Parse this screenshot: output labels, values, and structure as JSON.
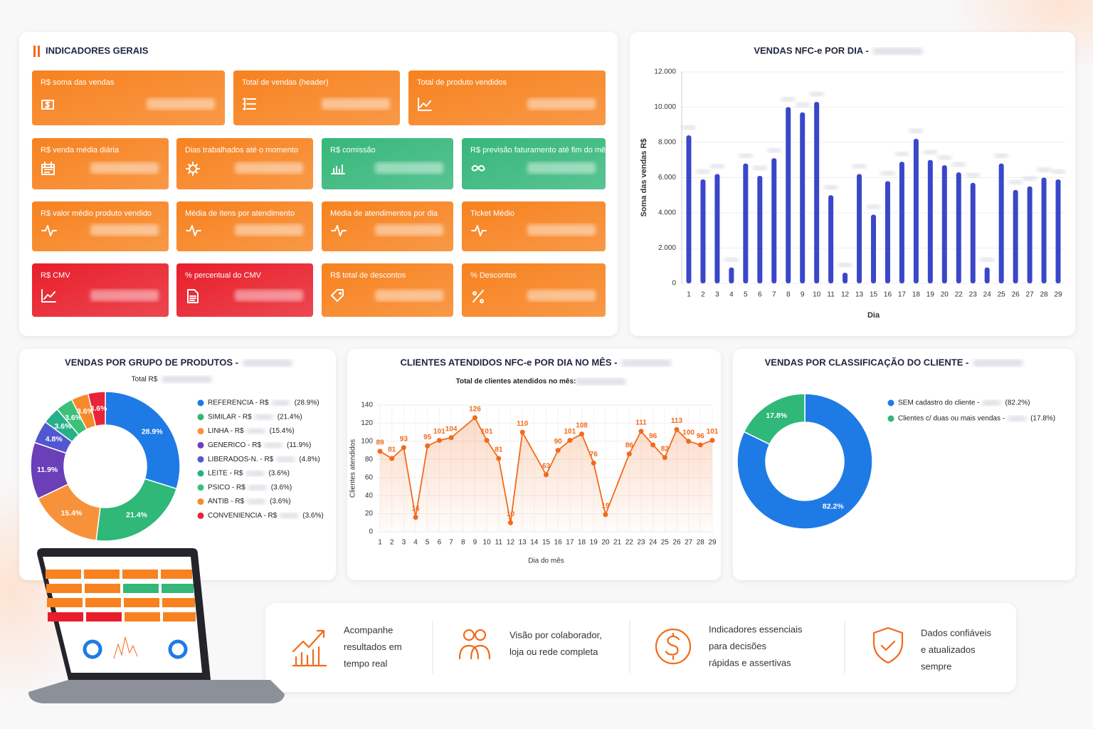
{
  "indicators": {
    "title": "INDICADORES GERAIS",
    "cards": [
      {
        "label": "R$ soma das vendas",
        "color": "#f7821f"
      },
      {
        "label": "Total de vendas (header)",
        "color": "#f7821f"
      },
      {
        "label": "Total de produto vendidos",
        "color": "#f7821f"
      },
      {
        "label": "R$ venda média diária",
        "color": "#f7821f"
      },
      {
        "label": "Dias trabalhados até o momento",
        "color": "#f7821f"
      },
      {
        "label": "R$ comissão",
        "color": "#35b77a"
      },
      {
        "label": "R$ previsão faturamento até fim do mês",
        "color": "#35b77a"
      },
      {
        "label": "R$ valor médio produto vendido",
        "color": "#f7821f"
      },
      {
        "label": "Média de itens por atendimento",
        "color": "#f7821f"
      },
      {
        "label": "Média de atendimentos por dia",
        "color": "#f7821f"
      },
      {
        "label": "Ticket Médio",
        "color": "#f7821f"
      },
      {
        "label": "R$ CMV",
        "color": "#e81f2b"
      },
      {
        "label": "% percentual do CMV",
        "color": "#e81f2b"
      },
      {
        "label": "R$ total de descontos",
        "color": "#f7821f"
      },
      {
        "label": "% Descontos",
        "color": "#f7821f"
      }
    ]
  },
  "chart_data": [
    {
      "type": "bar",
      "title": "VENDAS NFC-e POR DIA -",
      "categories": [
        "1",
        "2",
        "3",
        "4",
        "5",
        "6",
        "7",
        "8",
        "9",
        "10",
        "11",
        "12",
        "13",
        "15",
        "16",
        "17",
        "18",
        "19",
        "20",
        "22",
        "23",
        "24",
        "25",
        "26",
        "27",
        "28",
        "29"
      ],
      "values": [
        8400,
        5900,
        6200,
        900,
        6800,
        6100,
        7100,
        10000,
        9700,
        10300,
        5000,
        600,
        6200,
        3900,
        5800,
        6900,
        8200,
        7000,
        6700,
        6300,
        5700,
        900,
        6800,
        5300,
        5500,
        6000,
        5900
      ],
      "color": "#3a47c9",
      "ylim": [
        0,
        12000
      ],
      "yticks": [
        0,
        {
          "value": 2000,
          "label": "2.000"
        },
        {
          "value": 4000,
          "label": "4.000"
        },
        {
          "value": 6000,
          "label": "6.000"
        },
        {
          "value": 8000,
          "label": "8.000"
        },
        {
          "value": 10000,
          "label": "10.000"
        },
        {
          "value": 12000,
          "label": "12.000"
        }
      ],
      "ylabel": "Soma das vendas R$",
      "xlabel": "Dia",
      "grid": true
    },
    {
      "type": "donut",
      "title": "VENDAS POR GRUPO DE PRODUTOS -",
      "subtitle": "Total R$",
      "categories": [
        "REFERENCIA - R$",
        "SIMILAR - R$",
        "LINHA - R$",
        "GENERICO - R$",
        "LIBERADOS-N. - R$",
        "LEITE - R$",
        "PSICO - R$",
        "ANTIB - R$",
        "CONVENIENCIA - R$"
      ],
      "values": [
        28.9,
        21.4,
        15.4,
        11.9,
        4.8,
        3.6,
        3.6,
        3.6,
        3.6
      ],
      "value_labels": [
        "28.9%",
        "21.4%",
        "15.4%",
        "11.9%",
        "4.8%",
        "3.6%",
        "3.6%",
        "3.6%",
        "3.6%"
      ],
      "legend_labels": [
        "(28.9%)",
        "(21.4%)",
        "(15.4%)",
        "(11.9%)",
        "(4.8%)",
        "(3.6%)",
        "(3.6%)",
        "(3.6%)",
        "(3.6%)"
      ],
      "colors": [
        "#1e7be6",
        "#2fb877",
        "#f7923a",
        "#6a3fb8",
        "#5057d0",
        "#26b08a",
        "#3cc07a",
        "#f68a2b",
        "#e8243a"
      ]
    },
    {
      "type": "line",
      "title": "CLIENTES ATENDIDOS NFC-e POR DIA NO MÊS -",
      "subtitle": "Total de clientes atendidos no mês:",
      "x": [
        1,
        2,
        3,
        4,
        5,
        6,
        7,
        9,
        10,
        11,
        12,
        13,
        15,
        16,
        17,
        18,
        19,
        20,
        22,
        23,
        24,
        25,
        26,
        27,
        28,
        29
      ],
      "values": [
        89,
        81,
        93,
        16,
        95,
        101,
        104,
        126,
        101,
        81,
        10,
        110,
        63,
        90,
        101,
        108,
        76,
        19,
        86,
        111,
        96,
        82,
        113,
        100,
        96,
        101
      ],
      "color": "#f26a1b",
      "xlim": [
        1,
        29
      ],
      "xticks": [
        1,
        2,
        3,
        4,
        5,
        6,
        7,
        8,
        9,
        10,
        11,
        12,
        13,
        14,
        15,
        16,
        17,
        18,
        19,
        20,
        21,
        22,
        23,
        24,
        25,
        26,
        27,
        28,
        29
      ],
      "ylim": [
        0,
        140
      ],
      "yticks": [
        0,
        20,
        40,
        60,
        80,
        100,
        120,
        140
      ],
      "xlabel": "Dia do mês",
      "ylabel": "Clientes atendidos",
      "grid": true
    },
    {
      "type": "donut",
      "title": "VENDAS POR CLASSIFICAÇÃO DO CLIENTE -",
      "categories": [
        "SEM cadastro do cliente -",
        "Clientes c/ duas ou mais vendas -"
      ],
      "values": [
        82.2,
        17.8
      ],
      "value_labels": [
        "82.2%",
        "17.8%"
      ],
      "legend_labels": [
        "(82.2%)",
        "(17.8%)"
      ],
      "colors": [
        "#1e7be6",
        "#2fb877"
      ]
    }
  ],
  "features": [
    {
      "lines": [
        "Acompanhe",
        "resultados em",
        "tempo real"
      ]
    },
    {
      "lines": [
        "Visão por colaborador,",
        "loja ou rede completa"
      ]
    },
    {
      "lines": [
        "Indicadores essenciais",
        "para decisões",
        "rápidas e assertivas"
      ]
    },
    {
      "lines": [
        "Dados confiáveis",
        "e atualizados",
        "sempre"
      ]
    }
  ]
}
